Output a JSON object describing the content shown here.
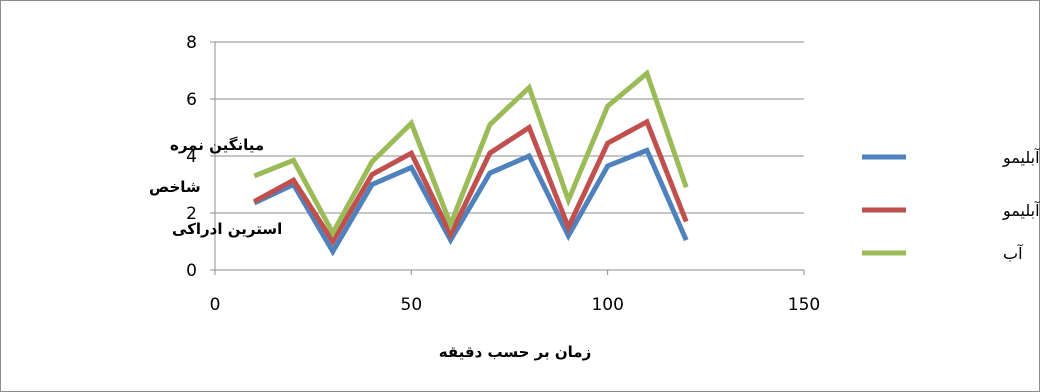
{
  "chart_data": {
    "type": "line",
    "xlabel": "زمان بر حسب دقیقه",
    "ylabel_lines": [
      "میانگین نمره",
      "شاخص",
      "استرین ادراکی"
    ],
    "xlim": [
      0,
      150
    ],
    "ylim": [
      0,
      8
    ],
    "x_ticks": [
      0,
      50,
      100,
      150
    ],
    "y_ticks": [
      0,
      2,
      4,
      6,
      8
    ],
    "grid": "horizontal",
    "legend_position": "right",
    "x": [
      10,
      20,
      30,
      40,
      50,
      60,
      70,
      80,
      90,
      100,
      110,
      120
    ],
    "series": [
      {
        "name": "شربت آبلیمو",
        "color": "#4f81bd",
        "values": [
          2.35,
          3.0,
          0.65,
          3.0,
          3.6,
          1.05,
          3.4,
          4.0,
          1.2,
          3.65,
          4.2,
          1.05
        ]
      },
      {
        "name": "آب و آبلیمو",
        "color": "#c0504d",
        "values": [
          2.4,
          3.15,
          1.0,
          3.35,
          4.1,
          1.25,
          4.1,
          5.0,
          1.5,
          4.45,
          5.2,
          1.7
        ]
      },
      {
        "name": "آب",
        "color": "#9bbb59",
        "values": [
          3.3,
          3.85,
          1.3,
          3.8,
          5.15,
          1.6,
          5.1,
          6.4,
          2.45,
          5.75,
          6.9,
          2.9
        ]
      }
    ]
  }
}
